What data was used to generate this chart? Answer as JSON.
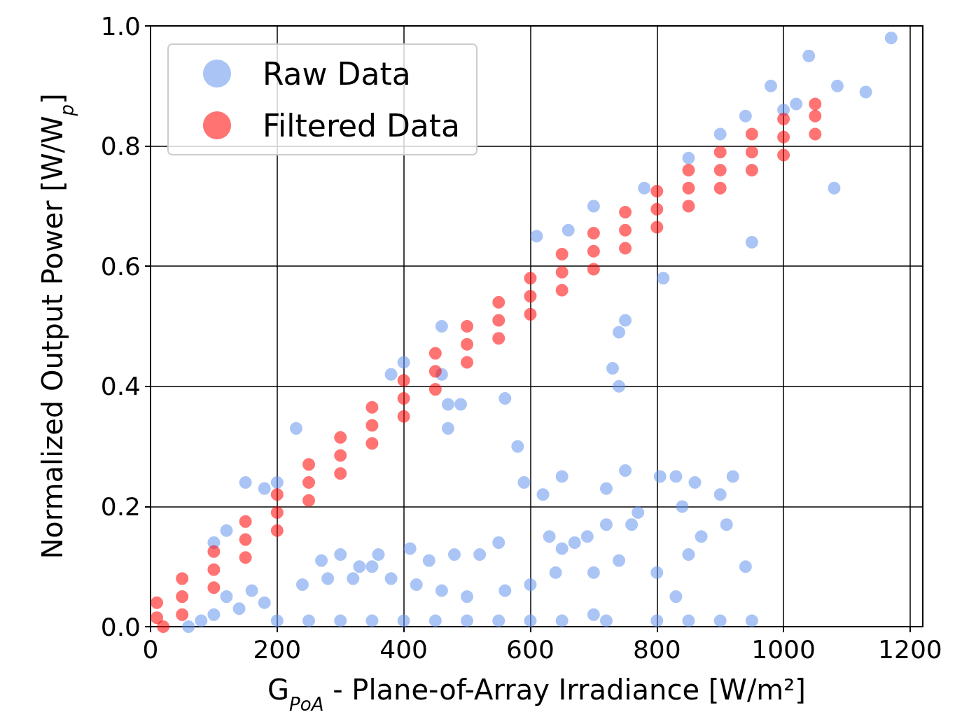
{
  "chart_data": {
    "type": "scatter",
    "xlabel": "G$_{PoA}$ - Plane-of-Array Irradiance [W/m²]",
    "ylabel": "Normalized Output Power [W/W$_{p}$]",
    "xlim": [
      0,
      1220
    ],
    "ylim": [
      0,
      1.0
    ],
    "xticks": [
      0,
      200,
      400,
      600,
      800,
      1000,
      1200
    ],
    "yticks": [
      {
        "value": 0,
        "label": "0.0"
      },
      {
        "value": 0.2,
        "label": "0.2"
      },
      {
        "value": 0.4,
        "label": "0.4"
      },
      {
        "value": 0.6,
        "label": "0.6"
      },
      {
        "value": 0.8,
        "label": "0.8"
      },
      {
        "value": 1,
        "label": "1.0"
      }
    ],
    "grid": true,
    "legend": "top left",
    "marker": "circle",
    "series": [
      {
        "name": "Raw Data",
        "color": "#6495ed",
        "x": [
          1170,
          1130,
          1085,
          1040,
          980,
          940,
          1080,
          950,
          810,
          750,
          740,
          730,
          740,
          460,
          400,
          380,
          460,
          470,
          490,
          560,
          470,
          230,
          580,
          590,
          650,
          620,
          750,
          720,
          830,
          805,
          860,
          920,
          900,
          910,
          840,
          770,
          720,
          760,
          690,
          630,
          670,
          650,
          550,
          520,
          480,
          440,
          410,
          360,
          350,
          330,
          300,
          270,
          240,
          280,
          320,
          380,
          420,
          460,
          500,
          560,
          600,
          640,
          700,
          740,
          800,
          850,
          870,
          830,
          940,
          610,
          660,
          700,
          780,
          850,
          900,
          1000,
          1020,
          150,
          180,
          200,
          100,
          120,
          100,
          120,
          140,
          160,
          180,
          200,
          250,
          300,
          350,
          400,
          450,
          500,
          550,
          600,
          650,
          700,
          720,
          800,
          850,
          900,
          950,
          60,
          80
        ],
        "values": [
          0.98,
          0.89,
          0.9,
          0.95,
          0.9,
          0.85,
          0.73,
          0.64,
          0.58,
          0.51,
          0.49,
          0.43,
          0.4,
          0.5,
          0.44,
          0.42,
          0.42,
          0.37,
          0.37,
          0.38,
          0.33,
          0.33,
          0.3,
          0.24,
          0.25,
          0.22,
          0.26,
          0.23,
          0.25,
          0.25,
          0.24,
          0.25,
          0.22,
          0.17,
          0.2,
          0.19,
          0.17,
          0.17,
          0.15,
          0.15,
          0.14,
          0.13,
          0.14,
          0.12,
          0.12,
          0.11,
          0.13,
          0.12,
          0.1,
          0.1,
          0.12,
          0.11,
          0.07,
          0.08,
          0.08,
          0.08,
          0.07,
          0.06,
          0.05,
          0.06,
          0.07,
          0.09,
          0.09,
          0.11,
          0.09,
          0.12,
          0.15,
          0.05,
          0.1,
          0.65,
          0.66,
          0.7,
          0.73,
          0.78,
          0.82,
          0.86,
          0.87,
          0.24,
          0.23,
          0.24,
          0.14,
          0.16,
          0.02,
          0.05,
          0.03,
          0.06,
          0.04,
          0.01,
          0.01,
          0.01,
          0.01,
          0.01,
          0.01,
          0.01,
          0.01,
          0.01,
          0.01,
          0.02,
          0.01,
          0.01,
          0.01,
          0.01,
          0.01,
          0.0,
          0.01
        ]
      },
      {
        "name": "Filtered Data",
        "color": "#ff0000",
        "x": [
          10,
          50,
          100,
          150,
          200,
          250,
          300,
          350,
          400,
          450,
          500,
          550,
          600,
          650,
          700,
          750,
          800,
          850,
          900,
          950,
          1000,
          1050,
          10,
          50,
          100,
          150,
          200,
          250,
          300,
          350,
          400,
          450,
          500,
          550,
          600,
          650,
          700,
          750,
          800,
          850,
          900,
          950,
          1000,
          1050,
          20,
          50,
          100,
          150,
          200,
          250,
          300,
          350,
          400,
          450,
          500,
          550,
          600,
          650,
          700,
          750,
          800,
          850,
          900,
          950,
          1000,
          1050
        ],
        "values": [
          0.015,
          0.05,
          0.095,
          0.145,
          0.19,
          0.24,
          0.285,
          0.335,
          0.38,
          0.425,
          0.47,
          0.51,
          0.55,
          0.59,
          0.625,
          0.66,
          0.695,
          0.73,
          0.76,
          0.79,
          0.815,
          0.85,
          0.04,
          0.08,
          0.125,
          0.175,
          0.22,
          0.27,
          0.315,
          0.365,
          0.41,
          0.455,
          0.5,
          0.54,
          0.58,
          0.62,
          0.655,
          0.69,
          0.725,
          0.76,
          0.79,
          0.82,
          0.845,
          0.87,
          0.0,
          0.02,
          0.065,
          0.115,
          0.16,
          0.21,
          0.255,
          0.305,
          0.35,
          0.395,
          0.44,
          0.48,
          0.52,
          0.56,
          0.595,
          0.63,
          0.665,
          0.7,
          0.73,
          0.76,
          0.785,
          0.82
        ]
      }
    ]
  }
}
